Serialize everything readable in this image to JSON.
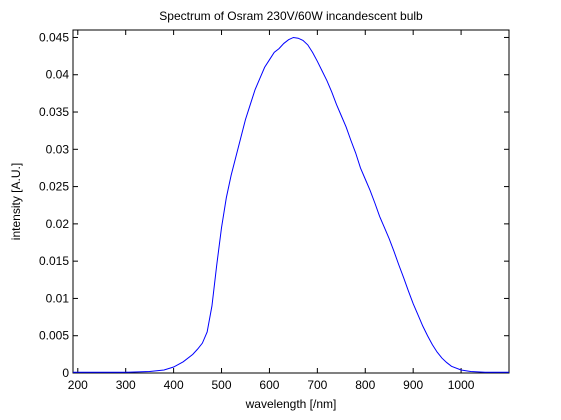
{
  "chart_data": {
    "type": "line",
    "title": "Spectrum of Osram 230V/60W incandescent bulb",
    "xlabel": "wavelength [/nm]",
    "ylabel": "intensity [A.U.]",
    "xlim": [
      190,
      1100
    ],
    "ylim": [
      0,
      0.046
    ],
    "grid": false,
    "legend": "none",
    "x_ticks": [
      200,
      300,
      400,
      500,
      600,
      700,
      800,
      900,
      1000
    ],
    "x_tick_labels": [
      "200",
      "300",
      "400",
      "500",
      "600",
      "700",
      "800",
      "900",
      "1000"
    ],
    "y_ticks": [
      0,
      0.005,
      0.01,
      0.015,
      0.02,
      0.025,
      0.03,
      0.035,
      0.04,
      0.045
    ],
    "y_tick_labels": [
      "0",
      "0.005",
      "0.01",
      "0.015",
      "0.02",
      "0.025",
      "0.03",
      "0.035",
      "0.04",
      "0.045"
    ],
    "series": [
      {
        "color": "#0000ff",
        "x": [
          190,
          250,
          300,
          350,
          380,
          400,
          420,
          440,
          450,
          460,
          470,
          480,
          490,
          500,
          510,
          520,
          530,
          540,
          550,
          560,
          570,
          580,
          590,
          600,
          610,
          620,
          630,
          640,
          650,
          660,
          670,
          680,
          690,
          700,
          710,
          720,
          730,
          740,
          750,
          760,
          770,
          780,
          790,
          800,
          810,
          820,
          830,
          840,
          850,
          860,
          870,
          880,
          890,
          900,
          910,
          920,
          930,
          940,
          950,
          960,
          970,
          980,
          1000,
          1020,
          1050,
          1100
        ],
        "y": [
          0.0001,
          0.0001,
          0.0001,
          0.0002,
          0.0004,
          0.0008,
          0.0015,
          0.0025,
          0.0032,
          0.004,
          0.0055,
          0.009,
          0.0145,
          0.0195,
          0.0235,
          0.0265,
          0.029,
          0.0315,
          0.034,
          0.036,
          0.038,
          0.0395,
          0.041,
          0.042,
          0.043,
          0.0435,
          0.0442,
          0.0447,
          0.045,
          0.0449,
          0.0446,
          0.044,
          0.043,
          0.0418,
          0.0405,
          0.0392,
          0.0377,
          0.036,
          0.0345,
          0.033,
          0.0312,
          0.0295,
          0.0275,
          0.026,
          0.0245,
          0.0228,
          0.021,
          0.0195,
          0.018,
          0.0163,
          0.0145,
          0.0128,
          0.011,
          0.0093,
          0.0078,
          0.0063,
          0.005,
          0.0038,
          0.0028,
          0.002,
          0.0014,
          0.0009,
          0.0004,
          0.0002,
          0.0001,
          0.0001
        ]
      }
    ]
  }
}
